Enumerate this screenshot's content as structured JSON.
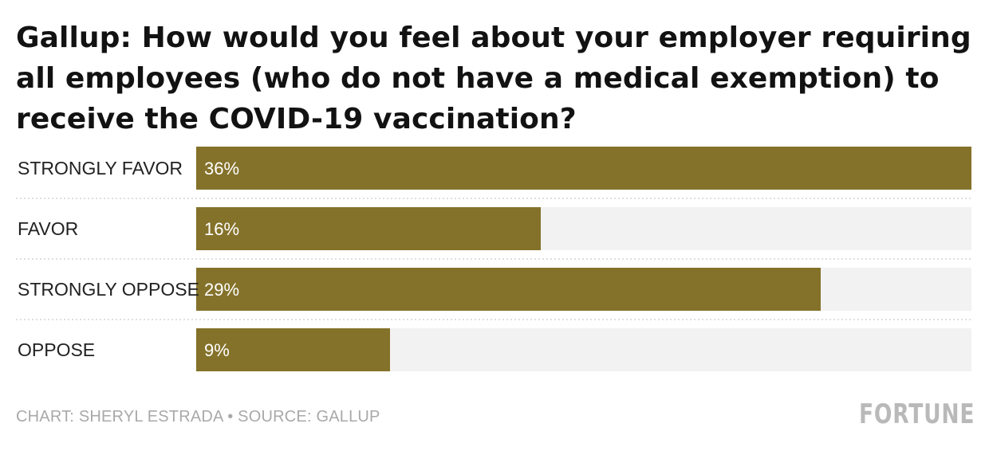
{
  "chart_data": {
    "type": "bar",
    "orientation": "horizontal",
    "title": "Gallup: How would you feel about your employer requiring all employees (who do not have a medical exemption) to receive the COVID-19 vaccination?",
    "categories": [
      "STRONGLY FAVOR",
      "FAVOR",
      "STRONGLY OPPOSE",
      "OPPOSE"
    ],
    "values": [
      36,
      16,
      29,
      9
    ],
    "value_labels": [
      "36%",
      "16%",
      "29%",
      "9%"
    ],
    "unit": "%",
    "xlim": [
      0,
      36
    ],
    "grid": false,
    "colors": {
      "bar": "#84722a",
      "track": "#f2f2f2",
      "separator": "#d4d4d4"
    }
  },
  "footer": {
    "credit": "CHART: SHERYL ESTRADA • SOURCE: GALLUP"
  },
  "brand": {
    "logo_text": "FORTUNE"
  }
}
